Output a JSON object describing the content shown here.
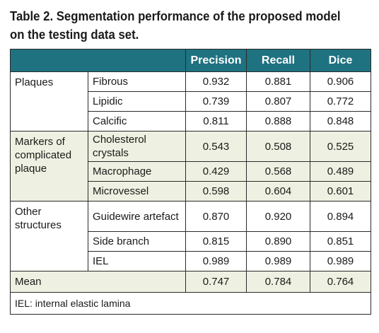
{
  "caption": "Table 2. Segmentation performance of the proposed model on the testing data set.",
  "columns": [
    "Precision",
    "Recall",
    "Dice"
  ],
  "groups": [
    {
      "label": "Plaques",
      "rows": [
        {
          "name": "Fibrous",
          "values": [
            "0.932",
            "0.881",
            "0.906"
          ]
        },
        {
          "name": "Lipidic",
          "values": [
            "0.739",
            "0.807",
            "0.772"
          ]
        },
        {
          "name": "Calcific",
          "values": [
            "0.811",
            "0.888",
            "0.848"
          ]
        }
      ]
    },
    {
      "label": "Markers of complicated plaque",
      "rows": [
        {
          "name": "Cholesterol crystals",
          "values": [
            "0.543",
            "0.508",
            "0.525"
          ]
        },
        {
          "name": "Macrophage",
          "values": [
            "0.429",
            "0.568",
            "0.489"
          ]
        },
        {
          "name": "Microvessel",
          "values": [
            "0.598",
            "0.604",
            "0.601"
          ]
        }
      ]
    },
    {
      "label": "Other structures",
      "rows": [
        {
          "name": "Guidewire artefact",
          "values": [
            "0.870",
            "0.920",
            "0.894"
          ]
        },
        {
          "name": "Side branch",
          "values": [
            "0.815",
            "0.890",
            "0.851"
          ]
        },
        {
          "name": "IEL",
          "values": [
            "0.989",
            "0.989",
            "0.989"
          ]
        }
      ]
    }
  ],
  "mean": {
    "label": "Mean",
    "values": [
      "0.747",
      "0.784",
      "0.764"
    ]
  },
  "footnote": "IEL: internal elastic lamina",
  "colors": {
    "header_bg": "#1f7280",
    "shade_bg": "#eef1e1",
    "border": "#2a2a2a"
  }
}
